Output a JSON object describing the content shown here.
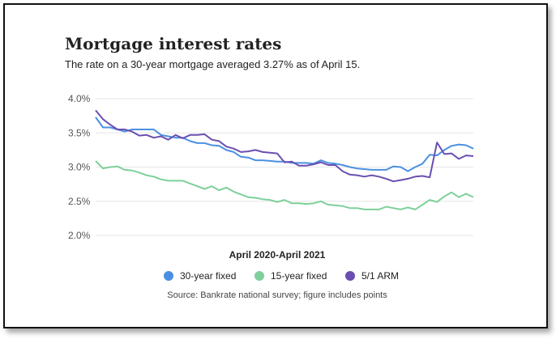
{
  "title": "Mortgage interest rates",
  "subtitle": "The rate on a 30-year mortgage averaged 3.27% as of April 15.",
  "source": "Source: Bankrate national survey; figure includes points",
  "chart_data": {
    "type": "line",
    "title": "Mortgage interest rates",
    "xlabel": "April 2020-April 2021",
    "ylabel": "",
    "ylim": [
      2.0,
      4.0
    ],
    "yticks": [
      "4.0%",
      "3.5%",
      "3.0%",
      "2.5%",
      "2.0%"
    ],
    "ytick_values": [
      4.0,
      3.5,
      3.0,
      2.5,
      2.0
    ],
    "grid": true,
    "legend": "bottom",
    "x": [
      1,
      2,
      3,
      4,
      5,
      6,
      7,
      8,
      9,
      10,
      11,
      12,
      13,
      14,
      15,
      16,
      17,
      18,
      19,
      20,
      21,
      22,
      23,
      24,
      25,
      26,
      27,
      28,
      29,
      30,
      31,
      32,
      33,
      34,
      35,
      36,
      37,
      38,
      39,
      40,
      41,
      42,
      43,
      44,
      45,
      46,
      47,
      48,
      49,
      50,
      51,
      52,
      53
    ],
    "series": [
      {
        "name": "30-year fixed",
        "color": "#4a90e2",
        "values": [
          3.73,
          3.58,
          3.58,
          3.55,
          3.52,
          3.55,
          3.55,
          3.55,
          3.55,
          3.47,
          3.45,
          3.43,
          3.43,
          3.38,
          3.35,
          3.35,
          3.32,
          3.31,
          3.25,
          3.22,
          3.15,
          3.14,
          3.1,
          3.1,
          3.09,
          3.08,
          3.08,
          3.06,
          3.06,
          3.06,
          3.05,
          3.1,
          3.06,
          3.05,
          3.03,
          3.0,
          2.98,
          2.97,
          2.96,
          2.96,
          2.96,
          3.01,
          3.0,
          2.94,
          3.0,
          3.05,
          3.18,
          3.17,
          3.25,
          3.31,
          3.33,
          3.32,
          3.27
        ]
      },
      {
        "name": "15-year fixed",
        "color": "#7ed09a",
        "values": [
          3.09,
          2.98,
          3.0,
          3.01,
          2.96,
          2.95,
          2.92,
          2.88,
          2.86,
          2.82,
          2.8,
          2.8,
          2.8,
          2.76,
          2.72,
          2.68,
          2.72,
          2.66,
          2.7,
          2.64,
          2.6,
          2.56,
          2.55,
          2.53,
          2.52,
          2.49,
          2.52,
          2.47,
          2.47,
          2.46,
          2.47,
          2.5,
          2.45,
          2.44,
          2.43,
          2.4,
          2.4,
          2.38,
          2.38,
          2.38,
          2.42,
          2.4,
          2.38,
          2.41,
          2.38,
          2.45,
          2.52,
          2.49,
          2.57,
          2.63,
          2.56,
          2.61,
          2.56
        ]
      },
      {
        "name": "5/1 ARM",
        "color": "#6a4fb0",
        "values": [
          3.83,
          3.7,
          3.62,
          3.55,
          3.55,
          3.52,
          3.46,
          3.47,
          3.43,
          3.45,
          3.4,
          3.47,
          3.42,
          3.47,
          3.47,
          3.48,
          3.4,
          3.38,
          3.3,
          3.27,
          3.22,
          3.23,
          3.25,
          3.22,
          3.21,
          3.2,
          3.07,
          3.08,
          3.02,
          3.02,
          3.04,
          3.07,
          3.03,
          3.03,
          2.94,
          2.89,
          2.88,
          2.86,
          2.88,
          2.86,
          2.83,
          2.79,
          2.81,
          2.83,
          2.86,
          2.87,
          2.85,
          3.36,
          3.19,
          3.2,
          3.12,
          3.17,
          3.16
        ]
      }
    ]
  }
}
